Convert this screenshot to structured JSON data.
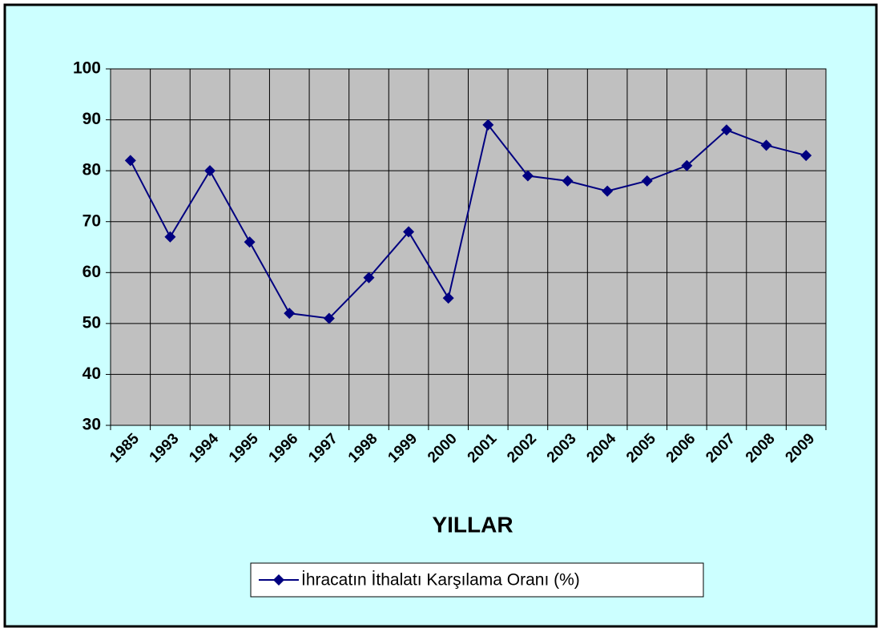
{
  "chart_data": {
    "type": "line",
    "x_label": "YILLAR",
    "categories": [
      "1985",
      "1993",
      "1994",
      "1995",
      "1996",
      "1997",
      "1998",
      "1999",
      "2000",
      "2001",
      "2002",
      "2003",
      "2004",
      "2005",
      "2006",
      "2007",
      "2008",
      "2009"
    ],
    "series": [
      {
        "name": "İhracatın İthalatı Karşılama Oranı (%)",
        "color": "#000080",
        "values": [
          82,
          67,
          80,
          66,
          52,
          51,
          59,
          68,
          55,
          89,
          79,
          78,
          76,
          78,
          81,
          88,
          85,
          83
        ]
      }
    ],
    "ylim": [
      30,
      100
    ],
    "yticks": [
      30,
      40,
      50,
      60,
      70,
      80,
      90,
      100
    ],
    "grid": true,
    "legend": "bottom"
  }
}
